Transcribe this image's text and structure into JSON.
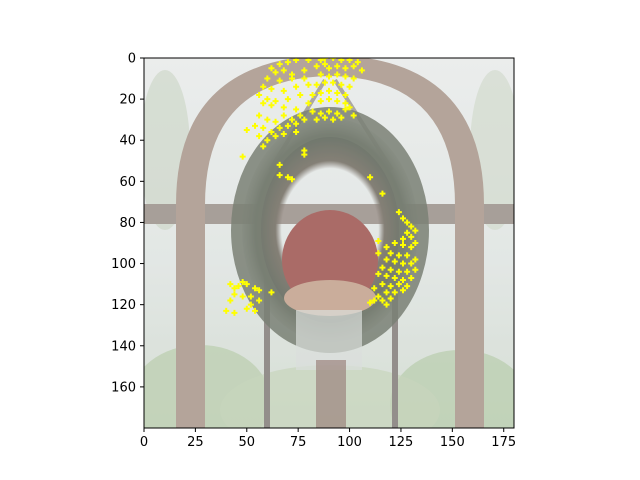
{
  "chart_data": {
    "type": "scatter",
    "title": "",
    "xlabel": "",
    "ylabel": "",
    "xlim": [
      0,
      180
    ],
    "ylim": [
      180,
      0
    ],
    "y_inverted": true,
    "grid": false,
    "xticks": [
      0,
      25,
      50,
      75,
      100,
      125,
      150,
      175
    ],
    "yticks": [
      0,
      20,
      40,
      60,
      80,
      100,
      120,
      140,
      160
    ],
    "background_image": "faded photo of a Christmas wreath with red flowers hanging in an arched window, greenhouse plants behind",
    "marker": "+",
    "marker_color": "#ffff00",
    "series": [
      {
        "name": "",
        "points": [
          [
            62,
            5
          ],
          [
            66,
            3
          ],
          [
            70,
            2
          ],
          [
            74,
            1
          ],
          [
            80,
            1
          ],
          [
            86,
            1
          ],
          [
            88,
            0
          ],
          [
            92,
            0
          ],
          [
            96,
            1
          ],
          [
            100,
            1
          ],
          [
            104,
            2
          ],
          [
            64,
            7
          ],
          [
            68,
            6
          ],
          [
            72,
            8
          ],
          [
            78,
            6
          ],
          [
            84,
            4
          ],
          [
            88,
            3
          ],
          [
            90,
            5
          ],
          [
            94,
            4
          ],
          [
            98,
            5
          ],
          [
            102,
            4
          ],
          [
            60,
            10
          ],
          [
            66,
            11
          ],
          [
            72,
            10
          ],
          [
            78,
            10
          ],
          [
            86,
            8
          ],
          [
            90,
            9
          ],
          [
            94,
            8
          ],
          [
            98,
            9
          ],
          [
            102,
            10
          ],
          [
            106,
            6
          ],
          [
            58,
            14
          ],
          [
            62,
            15
          ],
          [
            68,
            16
          ],
          [
            74,
            14
          ],
          [
            80,
            13
          ],
          [
            84,
            13
          ],
          [
            88,
            12
          ],
          [
            92,
            12
          ],
          [
            96,
            13
          ],
          [
            100,
            14
          ],
          [
            56,
            18
          ],
          [
            60,
            20
          ],
          [
            64,
            21
          ],
          [
            70,
            20
          ],
          [
            76,
            18
          ],
          [
            82,
            18
          ],
          [
            86,
            17
          ],
          [
            90,
            16
          ],
          [
            94,
            17
          ],
          [
            98,
            18
          ],
          [
            58,
            22
          ],
          [
            62,
            23
          ],
          [
            68,
            24
          ],
          [
            74,
            25
          ],
          [
            80,
            22
          ],
          [
            86,
            21
          ],
          [
            90,
            20
          ],
          [
            94,
            21
          ],
          [
            98,
            22
          ],
          [
            100,
            24
          ],
          [
            56,
            28
          ],
          [
            60,
            30
          ],
          [
            64,
            31
          ],
          [
            68,
            28
          ],
          [
            72,
            30
          ],
          [
            76,
            28
          ],
          [
            82,
            26
          ],
          [
            86,
            27
          ],
          [
            90,
            26
          ],
          [
            94,
            27
          ],
          [
            98,
            25
          ],
          [
            102,
            28
          ],
          [
            54,
            33
          ],
          [
            58,
            34
          ],
          [
            62,
            36
          ],
          [
            66,
            34
          ],
          [
            70,
            33
          ],
          [
            74,
            32
          ],
          [
            78,
            30
          ],
          [
            84,
            30
          ],
          [
            88,
            29
          ],
          [
            92,
            30
          ],
          [
            96,
            29
          ],
          [
            50,
            35
          ],
          [
            56,
            38
          ],
          [
            60,
            40
          ],
          [
            58,
            43
          ],
          [
            64,
            38
          ],
          [
            68,
            37
          ],
          [
            74,
            36
          ],
          [
            78,
            45
          ],
          [
            78,
            47
          ],
          [
            48,
            48
          ],
          [
            66,
            52
          ],
          [
            66,
            57
          ],
          [
            70,
            58
          ],
          [
            72,
            59
          ],
          [
            110,
            58
          ],
          [
            116,
            66
          ],
          [
            124,
            75
          ],
          [
            126,
            78
          ],
          [
            128,
            80
          ],
          [
            130,
            82
          ],
          [
            132,
            84
          ],
          [
            128,
            85
          ],
          [
            130,
            87
          ],
          [
            126,
            88
          ],
          [
            122,
            90
          ],
          [
            126,
            91
          ],
          [
            130,
            92
          ],
          [
            132,
            90
          ],
          [
            114,
            89
          ],
          [
            118,
            92
          ],
          [
            114,
            95
          ],
          [
            120,
            95
          ],
          [
            124,
            96
          ],
          [
            128,
            96
          ],
          [
            132,
            98
          ],
          [
            118,
            98
          ],
          [
            122,
            99
          ],
          [
            126,
            100
          ],
          [
            130,
            100
          ],
          [
            116,
            102
          ],
          [
            120,
            103
          ],
          [
            124,
            104
          ],
          [
            128,
            104
          ],
          [
            132,
            103
          ],
          [
            114,
            105
          ],
          [
            118,
            106
          ],
          [
            122,
            107
          ],
          [
            126,
            108
          ],
          [
            130,
            107
          ],
          [
            116,
            110
          ],
          [
            120,
            111
          ],
          [
            124,
            110
          ],
          [
            128,
            111
          ],
          [
            112,
            112
          ],
          [
            118,
            114
          ],
          [
            122,
            114
          ],
          [
            126,
            113
          ],
          [
            114,
            116
          ],
          [
            116,
            118
          ],
          [
            112,
            118
          ],
          [
            110,
            119
          ],
          [
            118,
            120
          ],
          [
            120,
            117
          ],
          [
            42,
            110
          ],
          [
            44,
            112
          ],
          [
            46,
            111
          ],
          [
            48,
            109
          ],
          [
            50,
            110
          ],
          [
            44,
            115
          ],
          [
            48,
            116
          ],
          [
            42,
            118
          ],
          [
            52,
            116
          ],
          [
            54,
            112
          ],
          [
            52,
            120
          ],
          [
            56,
            118
          ],
          [
            50,
            122
          ],
          [
            54,
            123
          ],
          [
            44,
            124
          ],
          [
            40,
            123
          ],
          [
            62,
            114
          ],
          [
            56,
            113
          ]
        ]
      }
    ]
  }
}
